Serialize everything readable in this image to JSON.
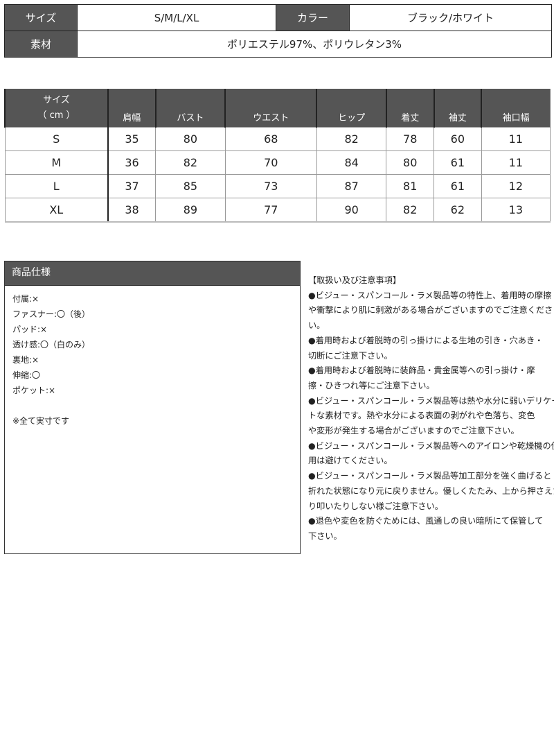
{
  "basic": {
    "size_label": "サイズ",
    "size_value": "S/M/L/XL",
    "color_label": "カラー",
    "color_value": "ブラック/ホワイト",
    "material_label": "素材",
    "material_value": "ポリエステル97%、ポリウレタン3%"
  },
  "size_table": {
    "header_line1": "サイズ",
    "header_line2": "（ cm ）",
    "columns": [
      "肩幅",
      "バスト",
      "ウエスト",
      "ヒップ",
      "着丈",
      "袖丈",
      "袖口幅"
    ],
    "rows": [
      {
        "size": "S",
        "values": [
          "35",
          "80",
          "68",
          "82",
          "78",
          "60",
          "11"
        ]
      },
      {
        "size": "M",
        "values": [
          "36",
          "82",
          "70",
          "84",
          "80",
          "61",
          "11"
        ]
      },
      {
        "size": "L",
        "values": [
          "37",
          "85",
          "73",
          "87",
          "81",
          "61",
          "12"
        ]
      },
      {
        "size": "XL",
        "values": [
          "38",
          "89",
          "77",
          "90",
          "82",
          "62",
          "13"
        ]
      }
    ]
  },
  "spec": {
    "title": "商品仕様",
    "lines": [
      "付属:×",
      "ファスナー:〇（後）",
      "パッド:×",
      "透け感:〇（白のみ）",
      "裏地:×",
      "伸縮:〇",
      "ポケット:×",
      "",
      "※全て実寸です"
    ]
  },
  "notes": {
    "title": "【取扱い及び注意事項】",
    "lines": [
      "●ビジュー・スパンコール・ラメ製品等の特性上、着用時の摩擦",
      "や衝撃により肌に刺激がある場合がございますのでご注意くださ",
      "い。",
      "●着用時および着脱時の引っ掛けによる生地の引き・穴あき・",
      "切断にご注意下さい。",
      "●着用時および着脱時に装飾品・貴金属等への引っ掛け・摩",
      "擦・ひきつれ等にご注意下さい。",
      "●ビジュー・スパンコール・ラメ製品等は熱や水分に弱いデリケー",
      "トな素材です。熱や水分による表面の剥がれや色落ち、変色",
      "や変形が発生する場合がございますのでご注意下さい。",
      "●ビジュー・スパンコール・ラメ製品等へのアイロンや乾燥機の使",
      "用は避けてください。",
      "●ビジュー・スパンコール・ラメ製品等加工部分を強く曲げると",
      "折れた状態になり元に戻りません。優しくたたみ、上から押さえた",
      "り叩いたりしない様ご注意下さい。",
      "●退色や変色を防ぐためには、風通しの良い暗所にて保管して",
      "下さい。"
    ]
  }
}
